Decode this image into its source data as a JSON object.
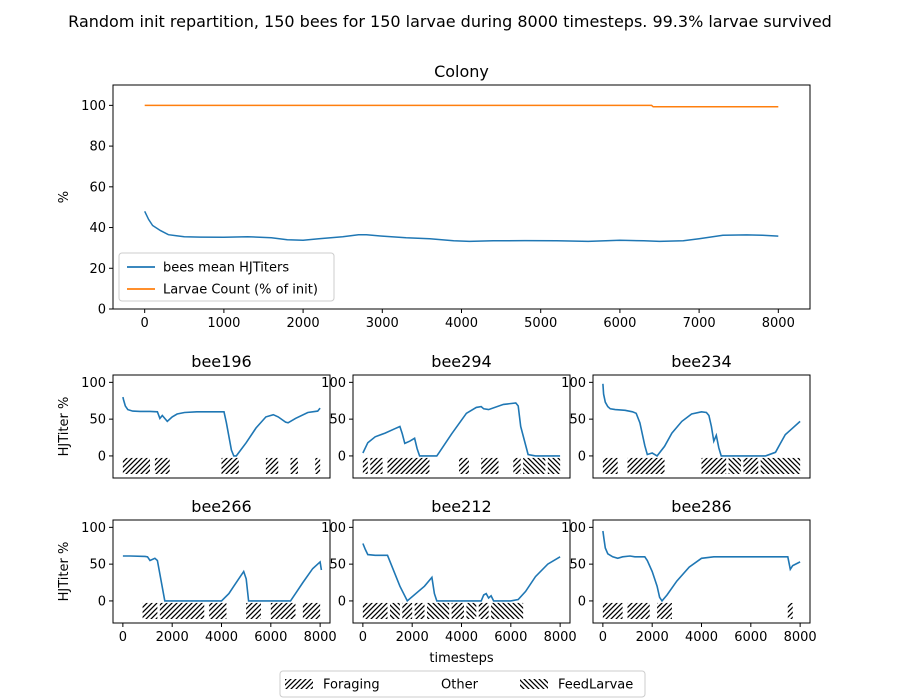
{
  "suptitle": "Random init repartition, 150 bees for 150 larvae during 8000 timesteps. 99.3% larvae survived",
  "colors": {
    "hjtiter": "#1f77b4",
    "larvae": "#ff7f0e"
  },
  "chart_data": [
    {
      "type": "line",
      "title": "Colony",
      "xlabel": "",
      "ylabel": "%",
      "xlim": [
        -400,
        8400
      ],
      "ylim": [
        0,
        110
      ],
      "xticks": [
        0,
        1000,
        2000,
        3000,
        4000,
        5000,
        6000,
        7000,
        8000
      ],
      "yticks": [
        0,
        20,
        40,
        60,
        80,
        100
      ],
      "legend": "lower-left",
      "series": [
        {
          "name": "bees mean HJTiters",
          "color": "#1f77b4",
          "x": [
            0,
            50,
            100,
            200,
            300,
            400,
            500,
            700,
            1000,
            1300,
            1600,
            1800,
            2000,
            2200,
            2500,
            2700,
            2800,
            3000,
            3300,
            3600,
            3900,
            4100,
            4400,
            4800,
            5200,
            5600,
            6000,
            6300,
            6500,
            6800,
            7000,
            7300,
            7600,
            7800,
            8000
          ],
          "y": [
            48,
            44,
            41,
            38.5,
            36.5,
            36,
            35.5,
            35.3,
            35.2,
            35.5,
            35,
            34,
            33.8,
            34.5,
            35.5,
            36.5,
            36.5,
            35.8,
            35,
            34.5,
            33.5,
            33.2,
            33.5,
            33.6,
            33.5,
            33.2,
            33.8,
            33.5,
            33.2,
            33.5,
            34.5,
            36.2,
            36.4,
            36.2,
            35.8
          ]
        },
        {
          "name": "Larvae Count (% of init)",
          "color": "#ff7f0e",
          "x": [
            0,
            6400,
            6420,
            8000
          ],
          "y": [
            100,
            100,
            99.3,
            99.3
          ]
        }
      ]
    },
    {
      "type": "line",
      "title": "bee196",
      "xlabel": "",
      "ylabel": "HJTiter %",
      "xlim": [
        -400,
        8400
      ],
      "ylim": [
        -30,
        110
      ],
      "yticks": [
        0,
        50,
        100
      ],
      "series": [
        {
          "name": "",
          "color": "#1f77b4",
          "x": [
            0,
            30,
            100,
            200,
            400,
            700,
            900,
            1100,
            1400,
            1500,
            1600,
            1800,
            2000,
            2200,
            2500,
            3000,
            3500,
            4000,
            4100,
            4200,
            4400,
            4500,
            4600,
            5000,
            5400,
            5800,
            6100,
            6300,
            6600,
            6700,
            7000,
            7500,
            7900,
            8000
          ],
          "y": [
            80,
            76,
            68,
            63,
            61,
            60.5,
            60.5,
            60.5,
            60,
            51,
            55,
            47,
            53,
            57,
            59,
            60,
            60,
            60,
            60,
            45,
            8,
            0,
            0,
            18,
            38,
            53,
            56,
            53,
            46,
            45,
            51,
            59,
            61,
            65
          ]
        }
      ],
      "blocks": [
        {
          "kind": "foraging",
          "ranges": [
            [
              0,
              1100
            ],
            [
              1300,
              1900
            ],
            [
              4000,
              4700
            ],
            [
              5800,
              6300
            ],
            [
              6800,
              7100
            ],
            [
              7800,
              8000
            ]
          ]
        }
      ]
    },
    {
      "type": "line",
      "title": "bee294",
      "xlabel": "",
      "ylabel": "",
      "xlim": [
        -400,
        8400
      ],
      "ylim": [
        -30,
        110
      ],
      "yticks": [
        0,
        50,
        100
      ],
      "series": [
        {
          "name": "",
          "color": "#1f77b4",
          "x": [
            0,
            200,
            500,
            900,
            1300,
            1500,
            1600,
            1700,
            1900,
            2100,
            2200,
            2300,
            2500,
            3000,
            3100,
            3600,
            4200,
            4600,
            4800,
            4900,
            5100,
            5700,
            6200,
            6300,
            6400,
            6700,
            7000,
            8000
          ],
          "y": [
            4,
            18,
            26,
            31,
            37,
            40,
            30,
            17,
            20,
            24,
            10,
            0,
            0,
            0,
            5,
            30,
            58,
            66,
            67,
            64,
            63,
            70,
            72,
            68,
            40,
            2,
            0,
            0
          ]
        },
        {
          "name": "",
          "color": "#1f77b4"
        }
      ],
      "blocks": [
        {
          "kind": "foraging",
          "ranges": [
            [
              0,
              200
            ],
            [
              300,
              800
            ],
            [
              1000,
              2700
            ],
            [
              3900,
              4300
            ],
            [
              4800,
              5500
            ],
            [
              6100,
              6400
            ]
          ]
        },
        {
          "kind": "feedlarvae",
          "ranges": [
            [
              6500,
              7400
            ],
            [
              7500,
              8000
            ]
          ]
        }
      ]
    },
    {
      "type": "line",
      "title": "bee234",
      "xlabel": "",
      "ylabel": "",
      "xlim": [
        -400,
        8400
      ],
      "ylim": [
        -30,
        110
      ],
      "yticks": [
        0,
        50,
        100
      ],
      "series": [
        {
          "name": "",
          "color": "#1f77b4",
          "x": [
            0,
            30,
            100,
            200,
            300,
            500,
            900,
            1200,
            1350,
            1500,
            1700,
            1800,
            2000,
            2200,
            2500,
            2800,
            3200,
            3600,
            4000,
            4200,
            4300,
            4400,
            4500,
            4600,
            4700,
            4800,
            5000,
            5500,
            6000,
            6400,
            6600,
            7000,
            7200,
            7400,
            7600,
            8000
          ],
          "y": [
            98,
            84,
            73,
            67,
            64,
            63,
            62,
            60,
            58,
            45,
            14,
            2,
            4,
            0,
            13,
            31,
            47,
            57,
            60,
            59,
            55,
            40,
            20,
            28,
            11,
            0,
            0,
            0,
            0,
            0,
            0,
            5,
            17,
            29,
            35,
            47
          ]
        }
      ],
      "blocks": [
        {
          "kind": "foraging",
          "ranges": [
            [
              0,
              600
            ],
            [
              1000,
              2500
            ],
            [
              4000,
              5000
            ],
            [
              5700,
              6300
            ]
          ]
        },
        {
          "kind": "feedlarvae",
          "ranges": [
            [
              5100,
              5600
            ],
            [
              6400,
              8000
            ]
          ]
        }
      ]
    },
    {
      "type": "line",
      "title": "bee266",
      "xlabel": "",
      "ylabel": "HJTiter %",
      "xlim": [
        -400,
        8400
      ],
      "ylim": [
        -30,
        110
      ],
      "yticks": [
        0,
        50,
        100
      ],
      "xticks": [
        0,
        2000,
        4000,
        6000,
        8000
      ],
      "series": [
        {
          "name": "",
          "color": "#1f77b4",
          "x": [
            0,
            300,
            900,
            1000,
            1100,
            1300,
            1400,
            1700,
            2000,
            2500,
            3000,
            3500,
            4000,
            4300,
            4500,
            4800,
            4900,
            5000,
            5100,
            5500,
            6000,
            6500,
            6800,
            7000,
            7300,
            7700,
            8000,
            8050
          ],
          "y": [
            61,
            61,
            60.5,
            60,
            55,
            58,
            55,
            0,
            0,
            0,
            0,
            0,
            0,
            10,
            20,
            35,
            40,
            30,
            0,
            0,
            0,
            0,
            0,
            10,
            25,
            44,
            53,
            42
          ]
        }
      ],
      "blocks": [
        {
          "kind": "foraging",
          "ranges": [
            [
              800,
              1400
            ],
            [
              1500,
              3300
            ],
            [
              3500,
              4200
            ],
            [
              5000,
              5600
            ],
            [
              6000,
              7000
            ],
            [
              7300,
              8000
            ]
          ]
        }
      ]
    },
    {
      "type": "line",
      "title": "bee212",
      "xlabel": "timesteps",
      "ylabel": "",
      "xlim": [
        -400,
        8400
      ],
      "ylim": [
        -30,
        110
      ],
      "yticks": [
        0,
        50,
        100
      ],
      "xticks": [
        0,
        2000,
        4000,
        6000,
        8000
      ],
      "series": [
        {
          "name": "",
          "color": "#1f77b4",
          "x": [
            0,
            100,
            200,
            500,
            900,
            1000,
            1500,
            1800,
            2500,
            2800,
            2900,
            3000,
            3500,
            4000,
            4800,
            4900,
            5000,
            5100,
            5200,
            5300,
            5500,
            6000,
            6300,
            6600,
            7000,
            7500,
            8000
          ],
          "y": [
            78,
            70,
            63,
            62,
            62,
            62,
            20,
            0,
            20,
            32,
            10,
            0,
            0,
            0,
            0,
            8,
            10,
            4,
            7,
            0,
            0,
            0,
            2,
            13,
            33,
            50,
            60
          ]
        }
      ],
      "blocks": [
        {
          "kind": "foraging",
          "ranges": [
            [
              0,
              1000
            ],
            [
              1600,
              2000
            ],
            [
              2100,
              2500
            ],
            [
              3600,
              4100
            ],
            [
              4700,
              5100
            ],
            [
              5600,
              5700
            ]
          ]
        },
        {
          "kind": "feedlarvae",
          "ranges": [
            [
              1100,
              1500
            ],
            [
              2600,
              3500
            ],
            [
              4200,
              4600
            ],
            [
              5200,
              6500
            ]
          ]
        }
      ]
    },
    {
      "type": "line",
      "title": "bee286",
      "xlabel": "",
      "ylabel": "",
      "xlim": [
        -400,
        8400
      ],
      "ylim": [
        -30,
        110
      ],
      "yticks": [
        0,
        50,
        100
      ],
      "xticks": [
        0,
        2000,
        4000,
        6000,
        8000
      ],
      "series": [
        {
          "name": "",
          "color": "#1f77b4",
          "x": [
            0,
            40,
            100,
            200,
            400,
            600,
            800,
            1100,
            1300,
            1700,
            1800,
            2000,
            2200,
            2300,
            2400,
            2600,
            3000,
            3500,
            4000,
            4500,
            5000,
            6000,
            7000,
            7500,
            7600,
            7700,
            8000
          ],
          "y": [
            95,
            85,
            72,
            64,
            60,
            58,
            60,
            61,
            60,
            60,
            55,
            40,
            20,
            5,
            0,
            8,
            27,
            46,
            58,
            60,
            60,
            60,
            60,
            60,
            43,
            48,
            53
          ]
        }
      ],
      "blocks": [
        {
          "kind": "foraging",
          "ranges": [
            [
              0,
              800
            ],
            [
              1000,
              1900
            ],
            [
              2200,
              2800
            ],
            [
              7500,
              7700
            ]
          ]
        }
      ]
    }
  ],
  "legend": {
    "items": [
      {
        "label": "Foraging",
        "pattern": "foraging"
      },
      {
        "label": "Other",
        "pattern": "other"
      },
      {
        "label": "FeedLarvae",
        "pattern": "feedlarvae"
      }
    ]
  }
}
